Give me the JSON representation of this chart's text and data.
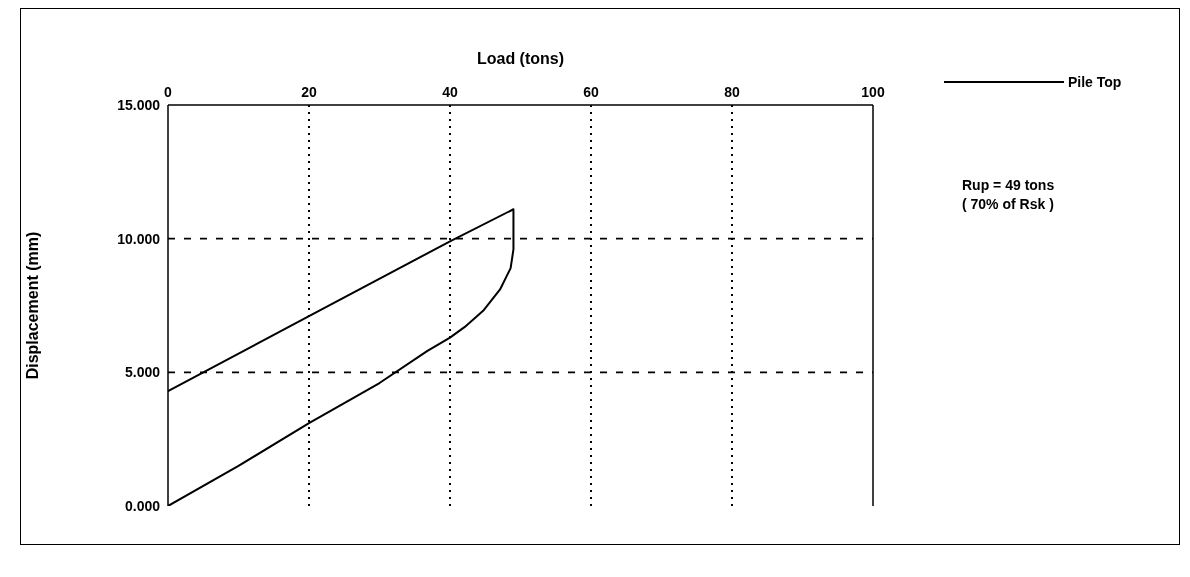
{
  "chart_data": {
    "type": "line",
    "xlabel": "Load (tons)",
    "ylabel": "Displacement (mm)",
    "x": [
      0,
      10,
      20,
      30,
      36.8,
      40,
      42.1,
      44.7,
      47.1,
      48.6,
      49,
      49,
      40,
      20,
      0
    ],
    "series": [
      {
        "name": "Pile Top",
        "color": "#000000",
        "values": [
          0,
          1.5,
          3.1,
          4.6,
          5.8,
          6.3,
          6.7,
          7.3,
          8.1,
          8.9,
          9.6,
          11.1,
          9.9,
          7.1,
          4.3
        ]
      }
    ],
    "xlim": [
      0,
      100
    ],
    "xticks": [
      0,
      20,
      40,
      60,
      80,
      100
    ],
    "ylim": [
      0,
      15
    ],
    "yticks": [
      {
        "value": 0,
        "label": "0.000"
      },
      {
        "value": 5,
        "label": "5.000"
      },
      {
        "value": 10,
        "label": "10.000"
      },
      {
        "value": 15,
        "label": "15.000"
      }
    ],
    "grid": true,
    "legend": "top right",
    "marker": "none",
    "line_style": "solid",
    "annotations": [
      "Rup = 49 tons",
      "( 70% of Rsk )"
    ]
  }
}
